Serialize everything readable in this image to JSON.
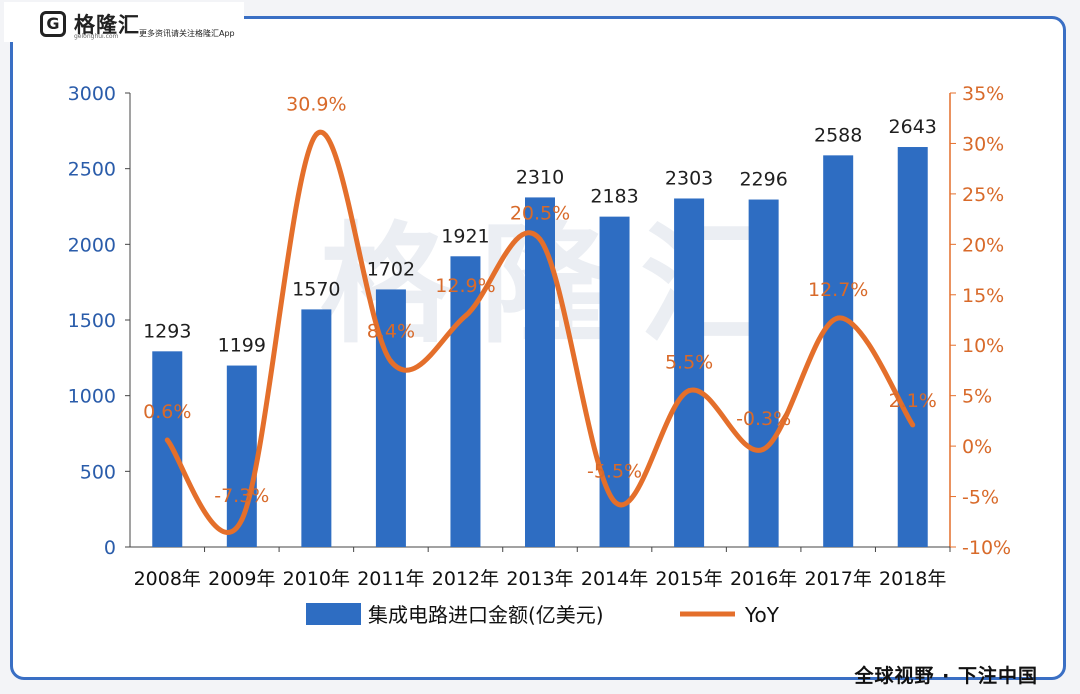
{
  "header": {
    "logo_mark": "G",
    "logo_name": "格隆汇",
    "logo_domain": "gelonghui.com",
    "logo_tagline": "更多资讯请关注格隆汇App"
  },
  "footer": {
    "text": "全球视野 · 下注中国"
  },
  "watermark": {
    "text": "格隆汇"
  },
  "colors": {
    "bar": "#2e6dc2",
    "line": "#e46f2b",
    "left_axis_text": "#2a5caa",
    "right_axis_text": "#d86a2a",
    "frame": "#3a6fc4"
  },
  "chart_data": {
    "type": "bar",
    "categories": [
      "2008年",
      "2009年",
      "2010年",
      "2011年",
      "2012年",
      "2013年",
      "2014年",
      "2015年",
      "2016年",
      "2017年",
      "2018年"
    ],
    "series": [
      {
        "name": "集成电路进口金额(亿美元)",
        "type": "bar",
        "axis": "left",
        "values": [
          1293,
          1199,
          1570,
          1702,
          1921,
          2310,
          2183,
          2303,
          2296,
          2588,
          2643
        ],
        "labels": [
          "1293",
          "1199",
          "1570",
          "1702",
          "1921",
          "2310",
          "2183",
          "2303",
          "2296",
          "2588",
          "2643"
        ]
      },
      {
        "name": "YoY",
        "type": "line",
        "axis": "right",
        "values": [
          0.6,
          -7.3,
          30.9,
          8.4,
          12.9,
          20.5,
          -5.5,
          5.5,
          -0.3,
          12.7,
          2.1
        ],
        "labels": [
          "0.6%",
          "-7.3%",
          "30.9%",
          "8.4%",
          "12.9%",
          "20.5%",
          "-5.5%",
          "5.5%",
          "-0.3%",
          "12.7%",
          "2.1%"
        ]
      }
    ],
    "y_left": {
      "min": 0,
      "max": 3000,
      "step": 500,
      "ticks": [
        "0",
        "500",
        "1000",
        "1500",
        "2000",
        "2500",
        "3000"
      ]
    },
    "y_right": {
      "min": -10,
      "max": 35,
      "step": 5,
      "ticks": [
        "-10%",
        "-5%",
        "0%",
        "5%",
        "10%",
        "15%",
        "20%",
        "25%",
        "30%",
        "35%"
      ]
    },
    "legend": {
      "position": "bottom"
    },
    "grid": false
  }
}
